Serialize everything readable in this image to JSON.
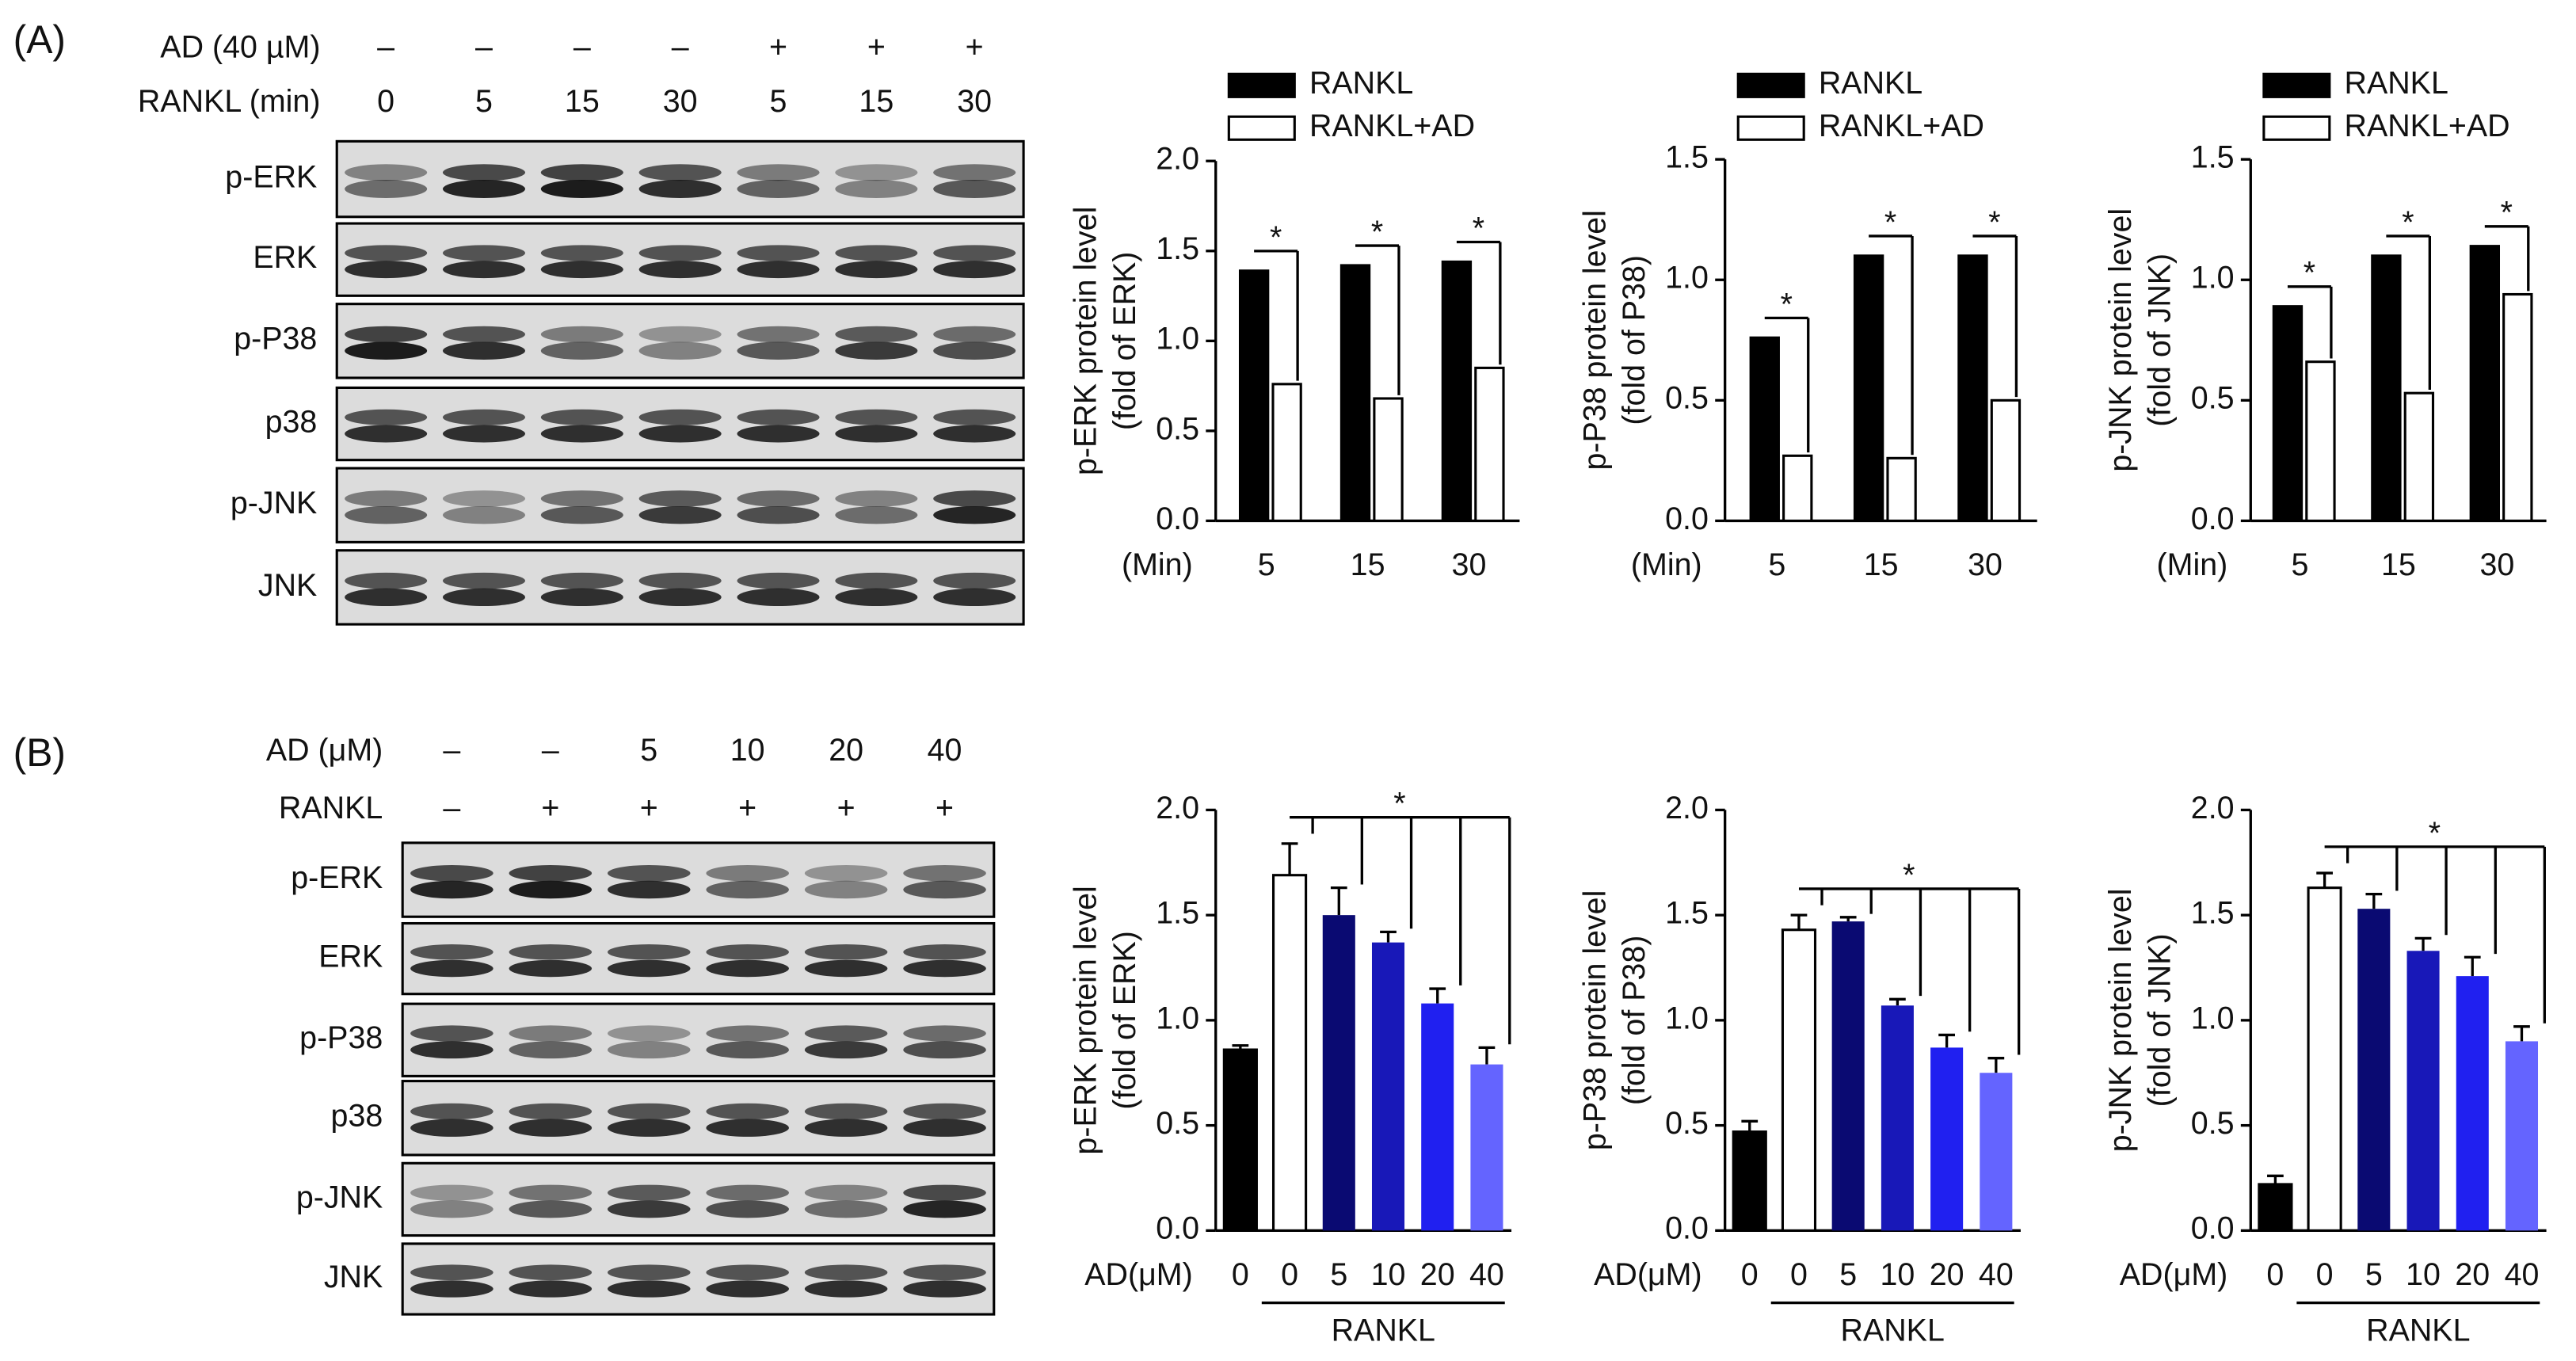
{
  "panel_labels": [
    "(A)",
    "(B)"
  ],
  "blots": [
    {
      "conditions": [
        {
          "name": "AD (40 µM)",
          "values": [
            "–",
            "–",
            "–",
            "–",
            "+",
            "+",
            "+"
          ]
        },
        {
          "name": "RANKL (min)",
          "values": [
            "0",
            "5",
            "15",
            "30",
            "5",
            "15",
            "30"
          ]
        }
      ],
      "rows": [
        "p-ERK",
        "ERK",
        "p-P38",
        "p38",
        "p-JNK",
        "JNK"
      ]
    },
    {
      "conditions": [
        {
          "name": "AD (μM)",
          "values": [
            "–",
            "–",
            "5",
            "10",
            "20",
            "40"
          ]
        },
        {
          "name": "RANKL",
          "values": [
            "–",
            "+",
            "+",
            "+",
            "+",
            "+"
          ]
        }
      ],
      "rows": [
        "p-ERK",
        "ERK",
        "p-P38",
        "p38",
        "p-JNK",
        "JNK"
      ]
    }
  ],
  "chart_data": [
    {
      "type": "bar",
      "ylabel": [
        "p-ERK protein level",
        "(fold of ERK)"
      ],
      "xlabel": "(Min)",
      "categories": [
        "5",
        "15",
        "30"
      ],
      "series": [
        {
          "name": "RANKL",
          "color": "#000000",
          "values": [
            1.39,
            1.42,
            1.44
          ]
        },
        {
          "name": "RANKL+AD",
          "color": "#ffffff",
          "values": [
            0.76,
            0.68,
            0.85
          ]
        }
      ],
      "significance": [
        "*",
        "*",
        "*"
      ],
      "ylim": [
        0,
        2
      ],
      "yticks": [
        {
          "value": 0,
          "label": "0.0"
        },
        {
          "value": 0.5,
          "label": "0.5"
        },
        {
          "value": 1,
          "label": "1.0"
        },
        {
          "value": 1.5,
          "label": "1.5"
        },
        {
          "value": 2,
          "label": "2.0"
        }
      ]
    },
    {
      "type": "bar",
      "ylabel": [
        "p-P38 protein level",
        "(fold of P38)"
      ],
      "xlabel": "(Min)",
      "categories": [
        "5",
        "15",
        "30"
      ],
      "series": [
        {
          "name": "RANKL",
          "color": "#000000",
          "values": [
            0.76,
            1.1,
            1.1
          ]
        },
        {
          "name": "RANKL+AD",
          "color": "#ffffff",
          "values": [
            0.27,
            0.26,
            0.5
          ]
        }
      ],
      "significance": [
        "*",
        "*",
        "*"
      ],
      "ylim": [
        0,
        1.5
      ],
      "yticks": [
        {
          "value": 0,
          "label": "0.0"
        },
        {
          "value": 0.5,
          "label": "0.5"
        },
        {
          "value": 1,
          "label": "1.0"
        },
        {
          "value": 1.5,
          "label": "1.5"
        }
      ]
    },
    {
      "type": "bar",
      "ylabel": [
        "p-JNK protein level",
        "(fold of JNK)"
      ],
      "xlabel": "(Min)",
      "categories": [
        "5",
        "15",
        "30"
      ],
      "series": [
        {
          "name": "RANKL",
          "color": "#000000",
          "values": [
            0.89,
            1.1,
            1.14
          ]
        },
        {
          "name": "RANKL+AD",
          "color": "#ffffff",
          "values": [
            0.66,
            0.53,
            0.94
          ]
        }
      ],
      "significance": [
        "*",
        "*",
        "*"
      ],
      "ylim": [
        0,
        1.5
      ],
      "yticks": [
        {
          "value": 0,
          "label": "0.0"
        },
        {
          "value": 0.5,
          "label": "0.5"
        },
        {
          "value": 1,
          "label": "1.0"
        },
        {
          "value": 1.5,
          "label": "1.5"
        }
      ]
    },
    {
      "type": "bar",
      "ylabel": [
        "p-ERK protein level",
        "(fold of ERK)"
      ],
      "xlabel": "AD(μM)",
      "group_label": "RANKL",
      "categories": [
        "0",
        "0",
        "5",
        "10",
        "20",
        "40"
      ],
      "values": [
        0.86,
        1.69,
        1.5,
        1.37,
        1.08,
        0.79
      ],
      "errors": [
        0.02,
        0.15,
        0.13,
        0.05,
        0.07,
        0.08
      ],
      "colors": [
        "#000000",
        "#ffffff",
        "#0a0a72",
        "#1818b8",
        "#2020f0",
        "#6464ff"
      ],
      "significance": "*",
      "ylim": [
        0,
        2
      ],
      "yticks": [
        {
          "value": 0,
          "label": "0.0"
        },
        {
          "value": 0.5,
          "label": "0.5"
        },
        {
          "value": 1,
          "label": "1.0"
        },
        {
          "value": 1.5,
          "label": "1.5"
        },
        {
          "value": 2,
          "label": "2.0"
        }
      ]
    },
    {
      "type": "bar",
      "ylabel": [
        "p-P38 protein level",
        "(fold of P38)"
      ],
      "xlabel": "AD(μM)",
      "group_label": "RANKL",
      "categories": [
        "0",
        "0",
        "5",
        "10",
        "20",
        "40"
      ],
      "values": [
        0.47,
        1.43,
        1.47,
        1.07,
        0.87,
        0.75
      ],
      "errors": [
        0.05,
        0.07,
        0.02,
        0.03,
        0.06,
        0.07
      ],
      "colors": [
        "#000000",
        "#ffffff",
        "#0a0a72",
        "#1818b8",
        "#2020f0",
        "#6464ff"
      ],
      "significance": "*",
      "ylim": [
        0,
        2
      ],
      "yticks": [
        {
          "value": 0,
          "label": "0.0"
        },
        {
          "value": 0.5,
          "label": "0.5"
        },
        {
          "value": 1,
          "label": "1.0"
        },
        {
          "value": 1.5,
          "label": "1.5"
        },
        {
          "value": 2,
          "label": "2.0"
        }
      ]
    },
    {
      "type": "bar",
      "ylabel": [
        "p-JNK protein level",
        "(fold of JNK)"
      ],
      "xlabel": "AD(μM)",
      "group_label": "RANKL",
      "categories": [
        "0",
        "0",
        "5",
        "10",
        "20",
        "40"
      ],
      "values": [
        0.22,
        1.63,
        1.53,
        1.33,
        1.21,
        0.9
      ],
      "errors": [
        0.04,
        0.07,
        0.07,
        0.06,
        0.09,
        0.07
      ],
      "colors": [
        "#000000",
        "#ffffff",
        "#0a0a72",
        "#1818b8",
        "#2020f0",
        "#6464ff"
      ],
      "significance": "*",
      "ylim": [
        0,
        2
      ],
      "yticks": [
        {
          "value": 0,
          "label": "0.0"
        },
        {
          "value": 0.5,
          "label": "0.5"
        },
        {
          "value": 1,
          "label": "1.0"
        },
        {
          "value": 1.5,
          "label": "1.5"
        },
        {
          "value": 2,
          "label": "2.0"
        }
      ]
    }
  ]
}
